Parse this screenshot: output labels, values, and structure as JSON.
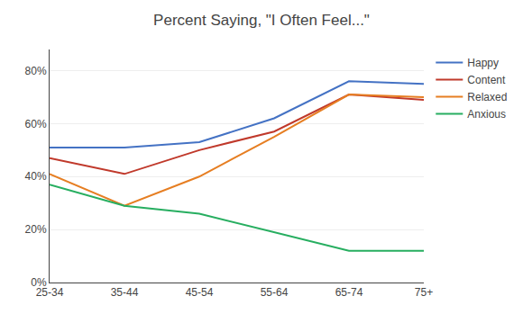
{
  "chart_data": {
    "type": "line",
    "title": "Percent Saying, \"I Often Feel...\"",
    "categories": [
      "25-34",
      "35-44",
      "45-54",
      "55-64",
      "65-74",
      "75+"
    ],
    "series": [
      {
        "name": "Happy",
        "color": "#4472c4",
        "values": [
          0.51,
          0.51,
          0.53,
          0.62,
          0.76,
          0.75
        ]
      },
      {
        "name": "Content",
        "color": "#c0392b",
        "values": [
          0.47,
          0.41,
          0.5,
          0.57,
          0.71,
          0.69
        ]
      },
      {
        "name": "Relaxed",
        "color": "#e67e22",
        "values": [
          0.41,
          0.29,
          0.4,
          0.55,
          0.71,
          0.7
        ]
      },
      {
        "name": "Anxious",
        "color": "#27ae60",
        "values": [
          0.37,
          0.29,
          0.26,
          0.19,
          0.12,
          0.12
        ]
      }
    ],
    "ylim": [
      0,
      0.88
    ],
    "yticks": [
      {
        "value": 0.0,
        "label": "0%"
      },
      {
        "value": 0.2,
        "label": "20%"
      },
      {
        "value": 0.4,
        "label": "40%"
      },
      {
        "value": 0.6,
        "label": "60%"
      },
      {
        "value": 0.8,
        "label": "80%"
      }
    ],
    "grid": true,
    "legend": "right"
  }
}
